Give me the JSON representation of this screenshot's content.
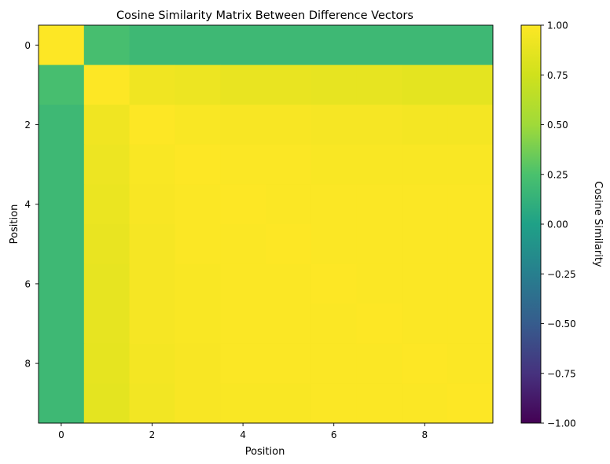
{
  "chart_data": {
    "type": "heatmap",
    "title": "Cosine Similarity Matrix Between Difference Vectors",
    "xlabel": "Position",
    "ylabel": "Position",
    "x_ticks": [
      0,
      2,
      4,
      6,
      8
    ],
    "y_ticks": [
      0,
      2,
      4,
      6,
      8
    ],
    "rows": [
      0,
      1,
      2,
      3,
      4,
      5,
      6,
      7,
      8,
      9
    ],
    "cols": [
      0,
      1,
      2,
      3,
      4,
      5,
      6,
      7,
      8,
      9
    ],
    "matrix": [
      [
        1.0,
        0.23,
        0.18,
        0.18,
        0.18,
        0.18,
        0.18,
        0.18,
        0.18,
        0.18
      ],
      [
        0.23,
        1.0,
        0.93,
        0.91,
        0.89,
        0.89,
        0.88,
        0.88,
        0.86,
        0.86
      ],
      [
        0.18,
        0.93,
        1.0,
        0.98,
        0.97,
        0.97,
        0.96,
        0.96,
        0.95,
        0.95
      ],
      [
        0.18,
        0.91,
        0.98,
        1.0,
        0.99,
        0.99,
        0.98,
        0.98,
        0.98,
        0.98
      ],
      [
        0.18,
        0.9,
        0.97,
        0.99,
        1.0,
        0.99,
        0.99,
        0.99,
        0.99,
        0.99
      ],
      [
        0.18,
        0.89,
        0.96,
        0.99,
        0.99,
        1.0,
        0.99,
        0.99,
        0.99,
        0.99
      ],
      [
        0.18,
        0.88,
        0.96,
        0.98,
        0.99,
        0.99,
        1.0,
        0.99,
        0.99,
        0.99
      ],
      [
        0.18,
        0.88,
        0.96,
        0.98,
        0.99,
        0.99,
        0.99,
        1.0,
        0.99,
        0.99
      ],
      [
        0.18,
        0.87,
        0.95,
        0.97,
        0.99,
        0.99,
        0.99,
        0.99,
        1.0,
        0.99
      ],
      [
        0.18,
        0.86,
        0.94,
        0.97,
        0.98,
        0.98,
        0.99,
        0.99,
        0.99,
        1.0
      ]
    ],
    "vmin": -1.0,
    "vmax": 1.0,
    "colormap": "viridis",
    "colorbar": {
      "label": "Cosine Similarity",
      "ticks": [
        1.0,
        0.75,
        0.5,
        0.25,
        0.0,
        -0.25,
        -0.5,
        -0.75,
        -1.0
      ],
      "tick_labels": [
        "1.00",
        "0.75",
        "0.50",
        "0.25",
        "0.00",
        "−0.25",
        "−0.50",
        "−0.75",
        "−1.00"
      ]
    }
  }
}
